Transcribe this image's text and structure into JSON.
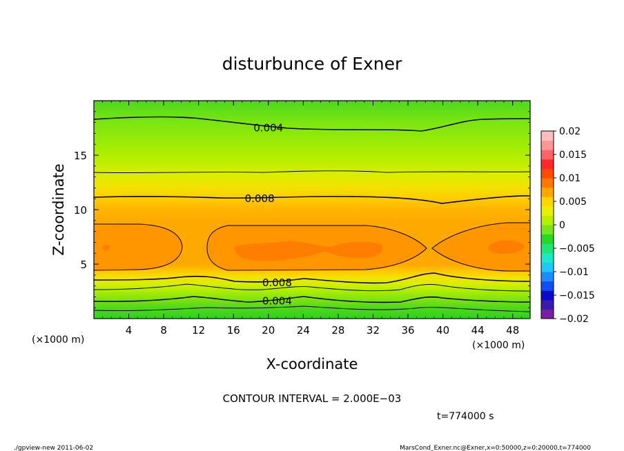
{
  "chart_data": {
    "type": "heatmap",
    "title": "disturbunce of Exner",
    "xlabel": "X-coordinate",
    "ylabel": "Z-coordinate",
    "x_unit_left": "(×1000 m)",
    "x_unit_right": "(×1000 m)",
    "xlim": [
      0,
      50
    ],
    "ylim": [
      0,
      20
    ],
    "x_ticks": [
      4,
      8,
      12,
      16,
      20,
      24,
      28,
      32,
      36,
      40,
      44,
      48
    ],
    "y_ticks": [
      5,
      10,
      15
    ],
    "colorbar": {
      "min": -0.02,
      "max": 0.02,
      "ticks": [
        "0.02",
        "0.015",
        "0.01",
        "0.005",
        "0",
        "−0.005",
        "−0.01",
        "−0.015",
        "−0.02"
      ],
      "colors": [
        "#7a1fa0",
        "#3c1aa8",
        "#0a0ac8",
        "#1050f0",
        "#1e8cff",
        "#1ec8ff",
        "#1ee6c8",
        "#1ee678",
        "#28d828",
        "#78e61e",
        "#b4f000",
        "#e6f000",
        "#ffd700",
        "#ffa500",
        "#ff7800",
        "#ff4b00",
        "#ff2828",
        "#ff6464",
        "#ff9696",
        "#ffbebe"
      ]
    },
    "contour_labels": [
      {
        "text": "0.004",
        "x": 20,
        "z": 17.5,
        "value": 0.004
      },
      {
        "text": "0.008",
        "x": 19,
        "z": 11,
        "value": 0.008
      },
      {
        "text": "0.008",
        "x": 21,
        "z": 3.3,
        "value": 0.008
      },
      {
        "text": "0.004",
        "x": 21,
        "z": 1.6,
        "value": 0.004
      }
    ],
    "contour_interval": "CONTOUR INTERVAL = 2.000E−03",
    "time": "t=774000 s"
  },
  "footer": {
    "left": "./gpview-new   2011-06-02",
    "right": "MarsCond_Exner.nc@Exner,x=0:50000,z=0:20000,t=774000"
  }
}
